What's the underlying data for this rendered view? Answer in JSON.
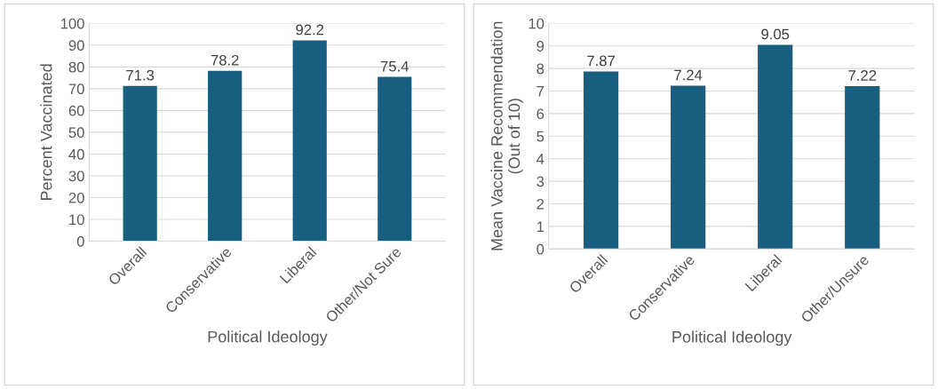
{
  "chart_data": [
    {
      "type": "bar",
      "categories": [
        "Overall",
        "Conservative",
        "Liberal",
        "Other/Not Sure"
      ],
      "values": [
        71.3,
        78.2,
        92.2,
        75.4
      ],
      "color": "#175e7f",
      "xlabel": "Political Ideology",
      "ylabel": "Percent Vaccinated",
      "ylim": [
        0,
        100
      ],
      "yticks": [
        0,
        10,
        20,
        30,
        40,
        50,
        60,
        70,
        80,
        90,
        100
      ],
      "grid": "y",
      "data_labels": true
    },
    {
      "type": "bar",
      "categories": [
        "Overall",
        "Conservative",
        "Liberal",
        "Other/Unsure"
      ],
      "values": [
        7.87,
        7.24,
        9.05,
        7.22
      ],
      "color": "#175e7f",
      "xlabel": "Political Ideology",
      "ylabel": "Mean Vaccine Recommendation\n(Out of 10)",
      "ylim": [
        0,
        10
      ],
      "yticks": [
        0,
        1,
        2,
        3,
        4,
        5,
        6,
        7,
        8,
        9,
        10
      ],
      "grid": "y",
      "data_labels": true
    }
  ]
}
